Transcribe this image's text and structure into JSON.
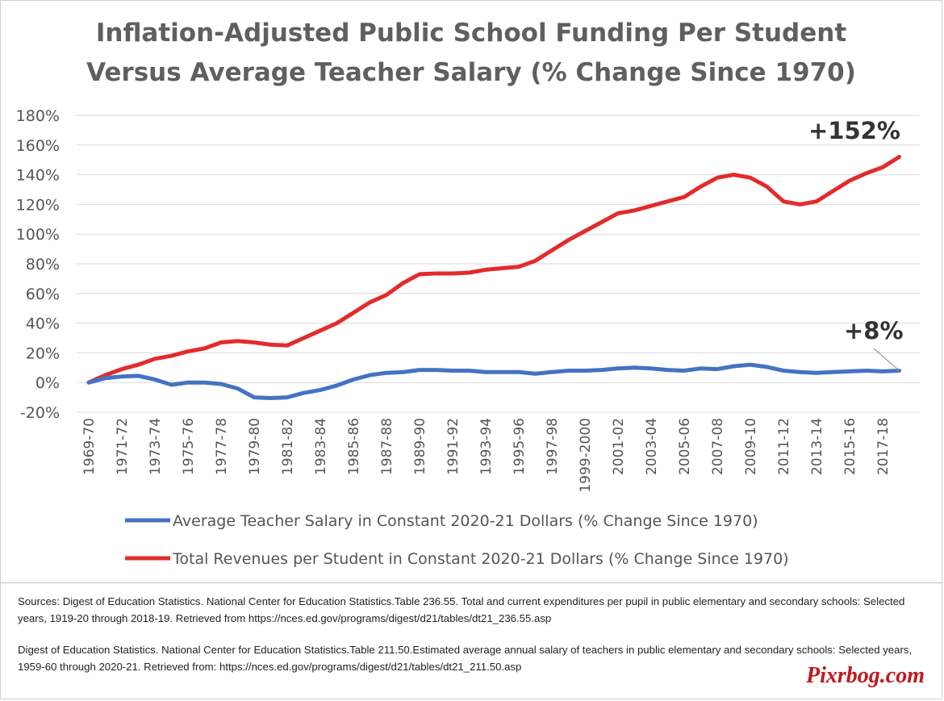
{
  "page": {
    "sources": [
      "Sources: Digest of Education Statistics. National Center for Education Statistics.Table 236.55. Total and current expenditures per pupil in public elementary and secondary schools: Selected years, 1919-20 through 2018-19. Retrieved from https://nces.ed.gov/programs/digest/d21/tables/dt21_236.55.asp",
      "Digest of Education Statistics. National Center for Education Statistics.Table 211.50.Estimated average annual salary of teachers in public elementary and secondary schools: Selected years, 1959-60 through 2020-21. Retrieved from: https://nces.ed.gov/programs/digest/d21/tables/dt21_211.50.asp"
    ],
    "watermark": "Pixrbog.com"
  },
  "chart_data": {
    "type": "line",
    "title": [
      "Inflation-Adjusted Public School Funding Per Student",
      "Versus Average Teacher Salary (% Change Since 1970)"
    ],
    "xlabel": "",
    "ylabel": "",
    "ylim": [
      -20,
      180
    ],
    "y_ticks": [
      "180%",
      "160%",
      "140%",
      "120%",
      "100%",
      "80%",
      "60%",
      "40%",
      "20%",
      "0%",
      "-20%"
    ],
    "x_tick_labels": [
      "1969-70",
      "1971-72",
      "1973-74",
      "1975-76",
      "1977-78",
      "1979-80",
      "1981-82",
      "1983-84",
      "1985-86",
      "1987-88",
      "1989-90",
      "1991-92",
      "1993-94",
      "1995-96",
      "1997-98",
      "1999-2000",
      "2001-02",
      "2003-04",
      "2005-06",
      "2007-08",
      "2009-10",
      "2011-12",
      "2013-14",
      "2015-16",
      "2017-18"
    ],
    "x": [
      "1969-70",
      "1970-71",
      "1971-72",
      "1972-73",
      "1973-74",
      "1974-75",
      "1975-76",
      "1976-77",
      "1977-78",
      "1978-79",
      "1979-80",
      "1980-81",
      "1981-82",
      "1982-83",
      "1983-84",
      "1984-85",
      "1985-86",
      "1986-87",
      "1987-88",
      "1988-89",
      "1989-90",
      "1990-91",
      "1991-92",
      "1992-93",
      "1993-94",
      "1994-95",
      "1995-96",
      "1996-97",
      "1997-98",
      "1998-99",
      "1999-2000",
      "2000-01",
      "2001-02",
      "2002-03",
      "2003-04",
      "2004-05",
      "2005-06",
      "2006-07",
      "2007-08",
      "2008-09",
      "2009-10",
      "2010-11",
      "2011-12",
      "2012-13",
      "2013-14",
      "2014-15",
      "2015-16",
      "2016-17",
      "2017-18",
      "2018-19"
    ],
    "grid": true,
    "legend_position": "bottom",
    "series": [
      {
        "name": "Average Teacher Salary in Constant 2020-21 Dollars (% Change Since 1970)",
        "color": "#4472c4",
        "values": [
          0,
          3,
          4,
          4.5,
          2,
          -1.5,
          0,
          0,
          -1,
          -4,
          -10,
          -10.5,
          -10,
          -7,
          -5,
          -2,
          2,
          5,
          6.5,
          7,
          8.5,
          8.5,
          8,
          8,
          7,
          7,
          7,
          6,
          7,
          8,
          8,
          8.5,
          9.5,
          10,
          9.5,
          8.5,
          8,
          9.5,
          9,
          11,
          12,
          10.5,
          8,
          7,
          6.5,
          7,
          7.5,
          8,
          7.5,
          8
        ]
      },
      {
        "name": "Total Revenues per Student in Constant 2020-21 Dollars (% Change Since 1970)",
        "color": "#e32b2b",
        "values": [
          0,
          5,
          9,
          12,
          16,
          18,
          21,
          23,
          27,
          28,
          27,
          25.5,
          25,
          30,
          35,
          40,
          47,
          54,
          59,
          67,
          73,
          73.5,
          73.5,
          74,
          76,
          77,
          78,
          82,
          89,
          96,
          102,
          108,
          114,
          116,
          119,
          122,
          125,
          132,
          138,
          140,
          138,
          132,
          122,
          120,
          122,
          129,
          136,
          141,
          145,
          152
        ]
      }
    ],
    "annotations": [
      "+152%",
      "+8%"
    ]
  }
}
